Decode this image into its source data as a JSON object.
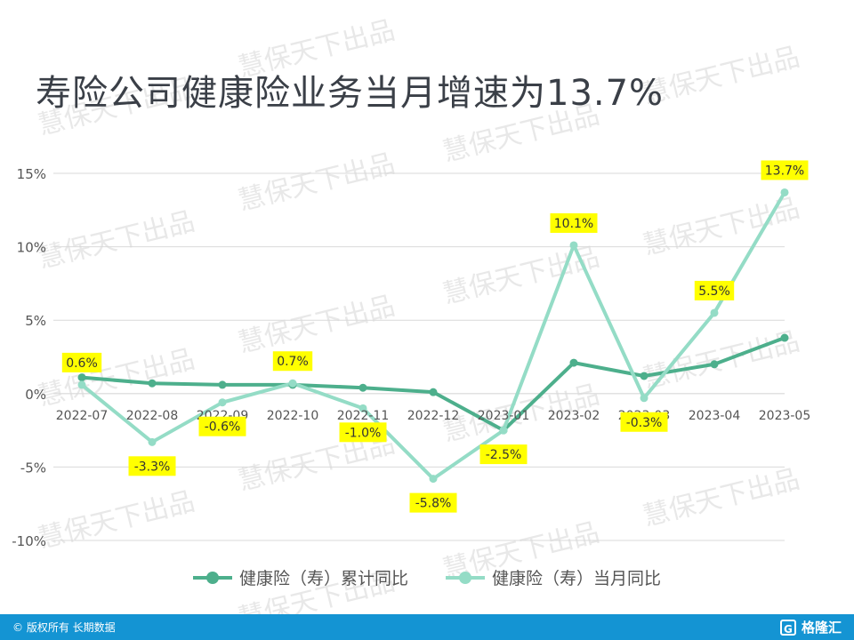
{
  "title": "寿险公司健康险业务当月增速为13.7%",
  "watermark": "慧保天下出品",
  "footer": {
    "copyright": "© 版权所有 长期数据",
    "logo_icon": "G",
    "logo_text": "格隆汇"
  },
  "colors": {
    "cumulative": "#4daf8c",
    "monthly": "#94dcc6",
    "label_bg": "#ffff00",
    "grid": "#d9d9d9",
    "footer": "#1494d3"
  },
  "chart_data": {
    "type": "line",
    "categories": [
      "2022-07",
      "2022-08",
      "2022-09",
      "2022-10",
      "2022-11",
      "2022-12",
      "2023-01",
      "2023-02",
      "2023-03",
      "2023-04",
      "2023-05"
    ],
    "yticks": [
      15,
      10,
      5,
      0,
      -5,
      -10
    ],
    "ytick_labels": [
      "15%",
      "10%",
      "5%",
      "0%",
      "-5%",
      "-10%"
    ],
    "ylim": [
      -10,
      15
    ],
    "grid": true,
    "legend_position": "bottom",
    "series": [
      {
        "name": "健康险（寿）累计同比",
        "values": [
          1.1,
          0.7,
          0.6,
          0.6,
          0.4,
          0.1,
          -2.5,
          2.1,
          1.2,
          2.0,
          3.8
        ]
      },
      {
        "name": "健康险（寿）当月同比",
        "values": [
          0.6,
          -3.3,
          -0.6,
          0.7,
          -1.0,
          -5.8,
          -2.5,
          10.1,
          -0.3,
          5.5,
          13.7
        ],
        "labels": [
          "0.6%",
          "-3.3%",
          "-0.6%",
          "0.7%",
          "-1.0%",
          "-5.8%",
          "-2.5%",
          "10.1%",
          "-0.3%",
          "5.5%",
          "13.7%"
        ]
      }
    ]
  }
}
